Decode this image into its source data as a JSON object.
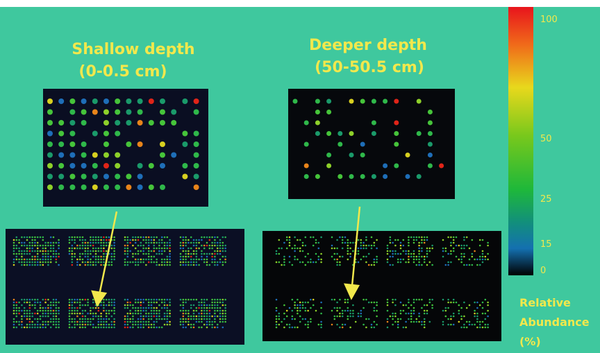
{
  "titles": {
    "shallow": {
      "line1": "Shallow depth",
      "line2": "(0-0.5 cm)"
    },
    "deeper": {
      "line1": "Deeper depth",
      "line2": "(50-50.5 cm)"
    }
  },
  "colorbar": {
    "ticks": [
      100,
      50,
      25,
      15,
      0
    ],
    "label": [
      "Relative",
      "Abundance",
      "(%)"
    ]
  }
}
